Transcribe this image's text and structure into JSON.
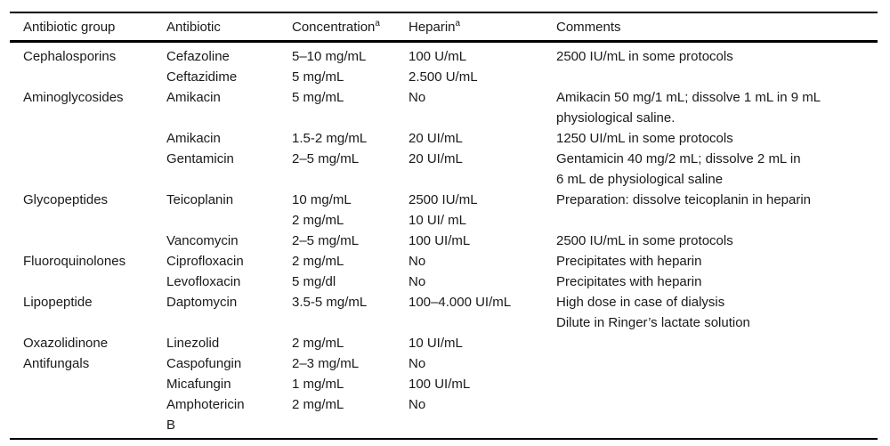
{
  "table": {
    "columns": [
      {
        "label": "Antibiotic group",
        "sup": ""
      },
      {
        "label": "Antibiotic",
        "sup": ""
      },
      {
        "label": "Concentration",
        "sup": "a"
      },
      {
        "label": "Heparin",
        "sup": "a"
      },
      {
        "label": "Comments",
        "sup": ""
      }
    ],
    "rows": [
      {
        "group": "Cephalosporins",
        "antibiotic": "Cefazoline",
        "concentration": "5–10 mg/mL",
        "heparin": "100 U/mL",
        "comments": "2500 IU/mL in some protocols"
      },
      {
        "group": "",
        "antibiotic": "Ceftazidime",
        "concentration": "5 mg/mL",
        "heparin": "2.500 U/mL",
        "comments": ""
      },
      {
        "group": "Aminoglycosides",
        "antibiotic": "Amikacin",
        "concentration": "5 mg/mL",
        "heparin": "No",
        "comments": "Amikacin 50 mg/1 mL; dissolve 1 mL in 9 mL\nphysiological saline."
      },
      {
        "group": "",
        "antibiotic": "Amikacin",
        "concentration": "1.5-2 mg/mL",
        "heparin": "20 UI/mL",
        "comments": "1250 UI/mL in some protocols"
      },
      {
        "group": "",
        "antibiotic": "Gentamicin",
        "concentration": "2–5 mg/mL",
        "heparin": "20 UI/mL",
        "comments": "Gentamicin 40 mg/2 mL; dissolve 2 mL in\n6 mL de physiological saline"
      },
      {
        "group": "Glycopeptides",
        "antibiotic": "Teicoplanin",
        "concentration": "10 mg/mL",
        "heparin": "2500 IU/mL",
        "comments": "Preparation: dissolve teicoplanin in heparin"
      },
      {
        "group": "",
        "antibiotic": "",
        "concentration": "2 mg/mL",
        "heparin": "10 UI/ mL",
        "comments": ""
      },
      {
        "group": "",
        "antibiotic": "Vancomycin",
        "concentration": "2–5 mg/mL",
        "heparin": "100 UI/mL",
        "comments": "2500 IU/mL in some protocols"
      },
      {
        "group": "Fluoroquinolones",
        "antibiotic": "Ciprofloxacin",
        "concentration": "2 mg/mL",
        "heparin": "No",
        "comments": "Precipitates with heparin"
      },
      {
        "group": "",
        "antibiotic": "Levofloxacin",
        "concentration": "5 mg/dl",
        "heparin": "No",
        "comments": "Precipitates with heparin"
      },
      {
        "group": "Lipopeptide",
        "antibiotic": "Daptomycin",
        "concentration": "3.5-5 mg/mL",
        "heparin": "100–4.000 UI/mL",
        "comments": "High dose in case of dialysis\nDilute in Ringer’s lactate solution"
      },
      {
        "group": "Oxazolidinone",
        "antibiotic": "Linezolid",
        "concentration": "2 mg/mL",
        "heparin": "10 UI/mL",
        "comments": ""
      },
      {
        "group": "Antifungals",
        "antibiotic": "Caspofungin",
        "concentration": "2–3 mg/mL",
        "heparin": "No",
        "comments": ""
      },
      {
        "group": "",
        "antibiotic": "Micafungin",
        "concentration": "1 mg/mL",
        "heparin": "100 UI/mL",
        "comments": ""
      },
      {
        "group": "",
        "antibiotic": "Amphotericin\nB",
        "concentration": "2 mg/mL",
        "heparin": "No",
        "comments": ""
      }
    ]
  }
}
